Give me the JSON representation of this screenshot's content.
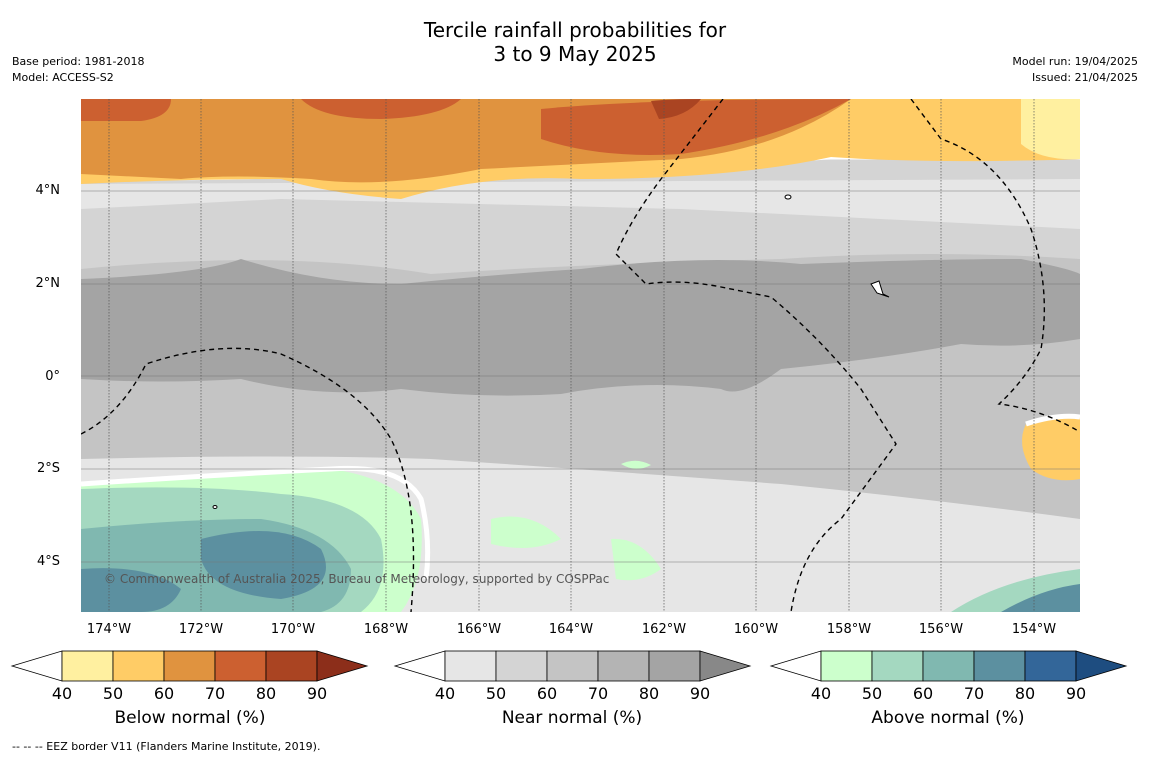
{
  "title_line1": "Tercile rainfall probabilities for",
  "title_line2": "3 to 9 May 2025",
  "base_period": "Base period: 1981-2018",
  "model": "Model: ACCESS-S2",
  "model_run": "Model run: 19/04/2025",
  "issued": "Issued: 21/04/2025",
  "copyright": "© Commonwealth of Australia 2025, Bureau of Meteorology, supported by COSPPac",
  "footer": "--  --  -- EEZ border V11 (Flanders Marine Institute, 2019).",
  "lat_ticks": [
    "4°N",
    "2°N",
    "0°",
    "2°S",
    "4°S"
  ],
  "lon_ticks": [
    "174°W",
    "172°W",
    "170°W",
    "168°W",
    "166°W",
    "164°W",
    "162°W",
    "160°W",
    "158°W",
    "156°W",
    "154°W"
  ],
  "colorbar_ticks": [
    "40",
    "50",
    "60",
    "70",
    "80",
    "90"
  ],
  "colorbars": [
    {
      "label": "Below normal (%)",
      "colors": [
        "#fff0a0",
        "#ffcc66",
        "#e0933f",
        "#cc6030",
        "#aa4422",
        "#8c2e1a"
      ]
    },
    {
      "label": "Near normal (%)",
      "colors": [
        "#e6e6e6",
        "#d4d4d4",
        "#c4c4c4",
        "#b4b4b4",
        "#a4a4a4",
        "#888888"
      ]
    },
    {
      "label": "Above normal (%)",
      "colors": [
        "#ccffcc",
        "#a4d8c0",
        "#80b8b0",
        "#5c90a0",
        "#336699",
        "#1e4d80"
      ]
    }
  ]
}
